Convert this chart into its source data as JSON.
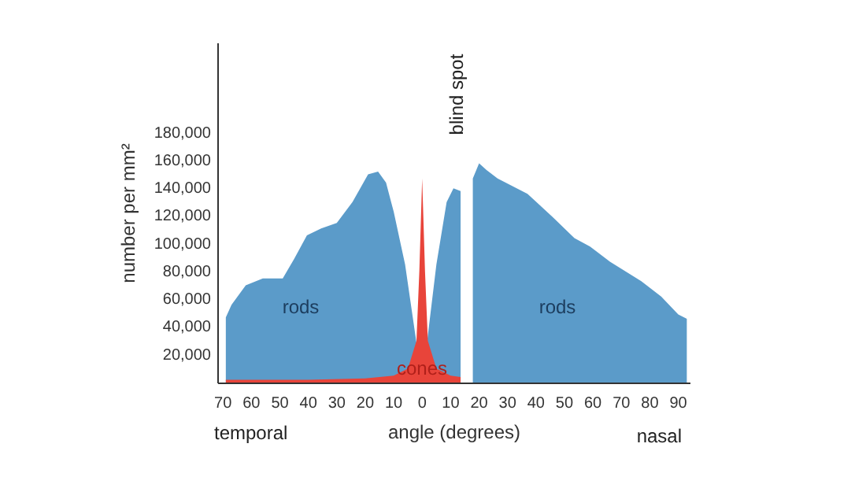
{
  "chart_data": {
    "type": "area",
    "xlabel": "angle (degrees)",
    "ylabel": "number per mm²",
    "xlim": [
      -72,
      94
    ],
    "ylim": [
      0,
      245000
    ],
    "xticks": [
      {
        "value": -70,
        "label": "70"
      },
      {
        "value": -60,
        "label": "60"
      },
      {
        "value": -50,
        "label": "50"
      },
      {
        "value": -40,
        "label": "40"
      },
      {
        "value": -30,
        "label": "30"
      },
      {
        "value": -20,
        "label": "20"
      },
      {
        "value": -10,
        "label": "10"
      },
      0,
      10,
      20,
      30,
      40,
      50,
      60,
      70,
      80,
      90
    ],
    "yticks": [
      {
        "value": 20000,
        "label": "20,000"
      },
      {
        "value": 40000,
        "label": "40,000"
      },
      {
        "value": 60000,
        "label": "60,000"
      },
      {
        "value": 80000,
        "label": "80,000"
      },
      {
        "value": 100000,
        "label": "100,000"
      },
      {
        "value": 120000,
        "label": "120,000"
      },
      {
        "value": 140000,
        "label": "140,000"
      },
      {
        "value": 160000,
        "label": "160,000"
      },
      {
        "value": 180000,
        "label": "180,000"
      }
    ],
    "grid": false,
    "series": [
      {
        "name": "rods",
        "color": "#5b9bc9",
        "x": [
          -69,
          -67,
          -62,
          -56,
          -49,
          -45,
          -40.5,
          -35.5,
          -30,
          -24.5,
          -19,
          -15.5,
          -12.7,
          -10,
          -6,
          -3.3,
          0,
          5,
          8.6,
          11,
          13.5,
          15,
          17.8,
          20,
          22.7,
          26.5,
          37,
          46,
          53.5,
          59,
          66,
          77,
          84,
          90,
          93
        ],
        "values": [
          47000,
          56000,
          70000,
          75000,
          75000,
          89000,
          106000,
          111000,
          115000,
          130000,
          150000,
          152000,
          144000,
          123000,
          85000,
          47000,
          0,
          85000,
          130000,
          140000,
          138000,
          null,
          147000,
          158000,
          153000,
          147000,
          136000,
          119000,
          104000,
          98000,
          87000,
          73000,
          62000,
          49000,
          46000
        ]
      },
      {
        "name": "cones",
        "color": "#e8443a",
        "x": [
          -69,
          -40,
          -20,
          -10,
          -5,
          -2,
          -1,
          0,
          1,
          2,
          5,
          10,
          13.5
        ],
        "values": [
          2000,
          2000,
          3000,
          5000,
          10000,
          30000,
          80000,
          147000,
          80000,
          30000,
          10000,
          5000,
          4000
        ]
      }
    ],
    "annotations": [
      "temporal",
      "nasal",
      "blind spot"
    ]
  }
}
